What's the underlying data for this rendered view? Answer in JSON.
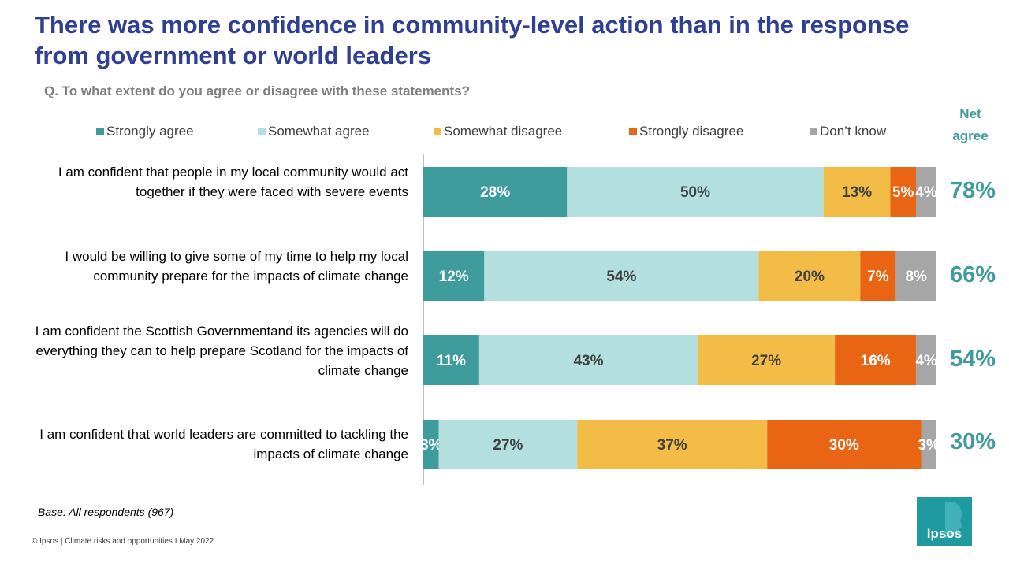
{
  "title": "There was more confidence in community-level action than in the response from government or world leaders",
  "question": "Q. To what extent do you agree or disagree with these statements?",
  "net_header": "Net agree",
  "base_note": "Base: All respondents (967)",
  "footer": "© Ipsos | Climate  risks and opportunities I May 2022",
  "logo_text": "Ipsos",
  "colors": {
    "strongly_agree": "#3f9c9c",
    "somewhat_agree": "#b3dfdf",
    "somewhat_disagree": "#f2bc47",
    "strongly_disagree": "#e96513",
    "dont_know": "#a6a6a6",
    "title": "#2f3f93",
    "net": "#3f9c9c"
  },
  "chart_data": {
    "type": "bar",
    "orientation": "horizontal",
    "stacked": true,
    "title": "There was more confidence in community-level action than in the response from government or world leaders",
    "xlabel": "",
    "ylabel": "",
    "xlim": [
      0,
      100
    ],
    "legend_position": "top",
    "categories": [
      "I am confident that people in my local community would act together if they were faced with severe events",
      "I would be willing to give some of my time to help my local community prepare for the impacts of climate change",
      "I am confident the Scottish Governmentand its agencies will do everything they can to help prepare Scotland for the impacts of climate change",
      "I am confident that world leaders are committed to tackling the impacts of climate change"
    ],
    "series": [
      {
        "name": "Strongly agree",
        "color": "#3f9c9c",
        "label_color": "#ffffff",
        "values": [
          28,
          12,
          11,
          3
        ]
      },
      {
        "name": "Somewhat agree",
        "color": "#b3dfdf",
        "label_color": "#404040",
        "values": [
          50,
          54,
          43,
          27
        ]
      },
      {
        "name": "Somewhat disagree",
        "color": "#f2bc47",
        "label_color": "#404040",
        "values": [
          13,
          20,
          27,
          37
        ]
      },
      {
        "name": "Strongly disagree",
        "color": "#e96513",
        "label_color": "#ffffff",
        "values": [
          5,
          7,
          16,
          30
        ]
      },
      {
        "name": "Don’t know",
        "color": "#a6a6a6",
        "label_color": "#ffffff",
        "values": [
          4,
          8,
          4,
          3
        ]
      }
    ],
    "net_agree": [
      "78%",
      "66%",
      "54%",
      "30%"
    ]
  }
}
